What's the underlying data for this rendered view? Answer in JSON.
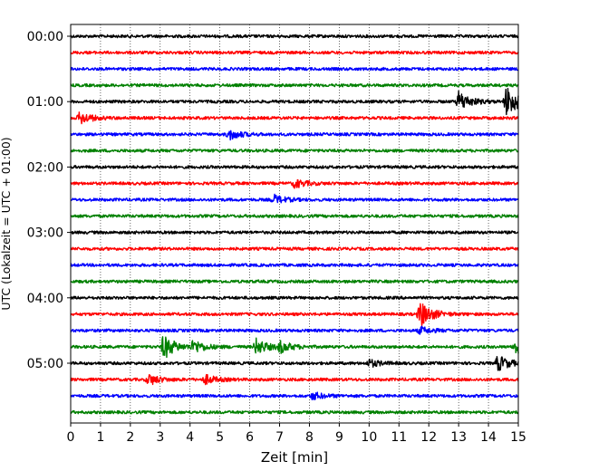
{
  "chart_data": {
    "type": "line",
    "title": "",
    "xlabel": "Zeit  [min]",
    "ylabel": "UTC (Lokalzeit = UTC + 01:00)",
    "xlim": [
      0,
      15
    ],
    "x_ticks": [
      "0",
      "1",
      "2",
      "3",
      "4",
      "5",
      "6",
      "7",
      "8",
      "9",
      "10",
      "11",
      "12",
      "13",
      "14",
      "15"
    ],
    "y_ticks": [
      "00:00",
      "01:00",
      "02:00",
      "03:00",
      "04:00",
      "05:00"
    ],
    "y_tick_rows": [
      0,
      4,
      8,
      12,
      16,
      20
    ],
    "grid": "vertical dotted",
    "trace_colors": [
      "#000000",
      "#ff0000",
      "#0000ff",
      "#008000"
    ],
    "trace_count": 24,
    "trace_interval_minutes": 15,
    "events": [
      {
        "trace": 4,
        "minute": 13.0,
        "amplitude": 1.1
      },
      {
        "trace": 4,
        "minute": 14.6,
        "amplitude": 1.8
      },
      {
        "trace": 5,
        "minute": 0.3,
        "amplitude": 0.7
      },
      {
        "trace": 6,
        "minute": 5.3,
        "amplitude": 0.6
      },
      {
        "trace": 9,
        "minute": 7.5,
        "amplitude": 0.5
      },
      {
        "trace": 10,
        "minute": 6.8,
        "amplitude": 0.5
      },
      {
        "trace": 17,
        "minute": 11.7,
        "amplitude": 1.5
      },
      {
        "trace": 18,
        "minute": 11.7,
        "amplitude": 0.4
      },
      {
        "trace": 19,
        "minute": 3.1,
        "amplitude": 1.4
      },
      {
        "trace": 19,
        "minute": 4.1,
        "amplitude": 0.7
      },
      {
        "trace": 19,
        "minute": 6.2,
        "amplitude": 0.9
      },
      {
        "trace": 19,
        "minute": 7.0,
        "amplitude": 0.6
      },
      {
        "trace": 19,
        "minute": 14.9,
        "amplitude": 0.8
      },
      {
        "trace": 20,
        "minute": 14.3,
        "amplitude": 0.9
      },
      {
        "trace": 20,
        "minute": 10.0,
        "amplitude": 0.4
      },
      {
        "trace": 21,
        "minute": 2.6,
        "amplitude": 0.6
      },
      {
        "trace": 21,
        "minute": 4.5,
        "amplitude": 0.5
      },
      {
        "trace": 22,
        "minute": 8.1,
        "amplitude": 0.4
      }
    ]
  }
}
